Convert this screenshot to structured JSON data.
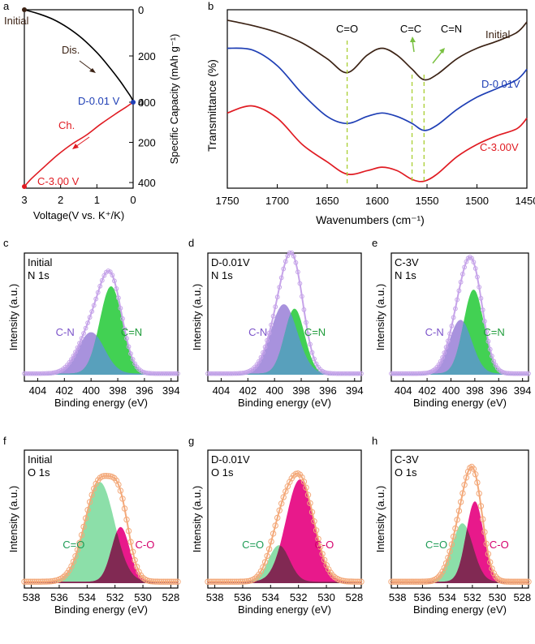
{
  "colors": {
    "brown": "#3b2214",
    "blue": "#1f3fb5",
    "red": "#e01b22",
    "green_guide": "#a9cf32",
    "arrow_green": "#7ac142",
    "purple_env": "#c6a4e9",
    "purple_fill": "#9f86d9",
    "teal_fill": "#5a9ec2",
    "green_fill": "#2ecc40",
    "orange_env": "#f3a97a",
    "lightgreen_fill": "#7fdca0",
    "pink_fill": "#e6007e",
    "maroon_fill": "#7b2a50"
  },
  "chart_data": [
    {
      "panel": "a",
      "type": "line",
      "xlabel": "Voltage(V vs. K⁺/K)",
      "ylabel": "Specific Capacity (mAh g⁻¹)",
      "x_ticks": [
        "3",
        "2",
        "1",
        "0"
      ],
      "xlim": [
        3,
        0
      ],
      "discharge_ticks": [
        "0",
        "200",
        "400"
      ],
      "charge_ticks": [
        "0",
        "200",
        "400"
      ],
      "annotations": {
        "initial": "Initial",
        "discharge": "Dis.",
        "charge": "Ch.",
        "d_point": "D-0.01 V",
        "c_point": "C-3.00 V"
      },
      "series": [
        {
          "name": "Dis.",
          "x": [
            3.0,
            2.6,
            2.2,
            1.8,
            1.4,
            1.0,
            0.7,
            0.4,
            0.2,
            0.05,
            0.0
          ],
          "y": [
            0,
            18,
            42,
            78,
            125,
            185,
            240,
            300,
            345,
            380,
            400
          ]
        },
        {
          "name": "Ch.",
          "x": [
            0.0,
            0.2,
            0.5,
            0.9,
            1.3,
            1.7,
            2.1,
            2.5,
            2.8,
            3.0
          ],
          "y": [
            0,
            25,
            60,
            110,
            165,
            210,
            265,
            330,
            380,
            420
          ]
        }
      ]
    },
    {
      "panel": "b",
      "type": "line",
      "xlabel": "Wavenumbers (cm⁻¹)",
      "ylabel": "Transmittance (%)",
      "x_ticks": [
        "1750",
        "1700",
        "1650",
        "1600",
        "1550",
        "1500",
        "1450"
      ],
      "xlim": [
        1750,
        1450
      ],
      "guides": [
        {
          "label": "C=O",
          "x": 1630
        },
        {
          "label": "C=C",
          "x": 1565
        },
        {
          "label": "C=N",
          "x": 1553
        }
      ],
      "series": [
        {
          "name": "Initial",
          "x": [
            1750,
            1725,
            1700,
            1675,
            1650,
            1630,
            1610,
            1595,
            1580,
            1565,
            1553,
            1540,
            1520,
            1500,
            1480,
            1460,
            1450
          ],
          "y": [
            0.86,
            0.83,
            0.79,
            0.73,
            0.64,
            0.56,
            0.66,
            0.7,
            0.66,
            0.58,
            0.52,
            0.55,
            0.64,
            0.7,
            0.74,
            0.79,
            0.85
          ]
        },
        {
          "name": "D-0.01V",
          "x": [
            1750,
            1725,
            1700,
            1675,
            1650,
            1630,
            1610,
            1595,
            1580,
            1565,
            1553,
            1540,
            1520,
            1500,
            1480,
            1460,
            1450
          ],
          "y": [
            0.7,
            0.69,
            0.6,
            0.44,
            0.31,
            0.27,
            0.31,
            0.33,
            0.31,
            0.27,
            0.23,
            0.26,
            0.35,
            0.42,
            0.47,
            0.52,
            0.58
          ]
        },
        {
          "name": "C-3.00V",
          "x": [
            1750,
            1725,
            1700,
            1675,
            1650,
            1630,
            1610,
            1595,
            1580,
            1565,
            1553,
            1540,
            1520,
            1500,
            1480,
            1460,
            1450
          ],
          "y": [
            0.33,
            0.37,
            0.3,
            0.15,
            0.05,
            -0.02,
            0.0,
            0.02,
            0.0,
            -0.05,
            -0.06,
            -0.02,
            0.08,
            0.15,
            0.2,
            0.24,
            0.3
          ]
        }
      ]
    },
    {
      "panel": "c",
      "type": "area",
      "title": "Initial",
      "subtitle": "N 1s",
      "xlabel": "Binding energy (eV)",
      "ylabel": "Intensity (a.u.)",
      "x_ticks": [
        "404",
        "402",
        "400",
        "398",
        "396",
        "394"
      ],
      "xlim": [
        405,
        393.5
      ],
      "peaks": [
        {
          "name": "C-N",
          "center": 400.0,
          "height": 0.37,
          "sigma": 1.0
        },
        {
          "name": "C=N",
          "center": 398.5,
          "height": 0.78,
          "sigma": 0.85
        }
      ]
    },
    {
      "panel": "d",
      "type": "area",
      "title": "D-0.01V",
      "subtitle": "N 1s",
      "xlabel": "Binding energy (eV)",
      "ylabel": "Intensity (a.u.)",
      "x_ticks": [
        "404",
        "402",
        "400",
        "398",
        "396",
        "394"
      ],
      "xlim": [
        405,
        393.5
      ],
      "peaks": [
        {
          "name": "C-N",
          "center": 399.3,
          "height": 0.62,
          "sigma": 1.0
        },
        {
          "name": "C=N",
          "center": 398.5,
          "height": 0.58,
          "sigma": 0.75
        }
      ]
    },
    {
      "panel": "e",
      "type": "area",
      "title": "C-3V",
      "subtitle": "N 1s",
      "xlabel": "Binding energy (eV)",
      "ylabel": "Intensity (a.u.)",
      "x_ticks": [
        "404",
        "402",
        "400",
        "398",
        "396",
        "394"
      ],
      "xlim": [
        405,
        393.5
      ],
      "peaks": [
        {
          "name": "C-N",
          "center": 399.2,
          "height": 0.48,
          "sigma": 0.95
        },
        {
          "name": "C=N",
          "center": 398.1,
          "height": 0.75,
          "sigma": 0.85
        }
      ]
    },
    {
      "panel": "f",
      "type": "area",
      "title": "Initial",
      "subtitle": "O 1s",
      "xlabel": "Binding energy (eV)",
      "ylabel": "Intensity (a.u.)",
      "x_ticks": [
        "538",
        "536",
        "534",
        "532",
        "530",
        "528"
      ],
      "xlim": [
        538.5,
        527.5
      ],
      "peaks": [
        {
          "name": "C=O",
          "center": 533.1,
          "height": 0.82,
          "sigma": 1.05
        },
        {
          "name": "C-O",
          "center": 531.6,
          "height": 0.45,
          "sigma": 0.65
        }
      ]
    },
    {
      "panel": "g",
      "type": "area",
      "title": "D-0.01V",
      "subtitle": "O 1s",
      "xlabel": "Binding energy (eV)",
      "ylabel": "Intensity (a.u.)",
      "x_ticks": [
        "538",
        "536",
        "534",
        "532",
        "530",
        "528"
      ],
      "xlim": [
        538.5,
        527.5
      ],
      "peaks": [
        {
          "name": "C=O",
          "center": 533.4,
          "height": 0.3,
          "sigma": 0.75
        },
        {
          "name": "C-O",
          "center": 531.9,
          "height": 0.84,
          "sigma": 1.0
        }
      ]
    },
    {
      "panel": "h",
      "type": "area",
      "title": "C-3V",
      "subtitle": "O 1s",
      "xlabel": "Binding energy (eV)",
      "ylabel": "Intensity (a.u.)",
      "x_ticks": [
        "538",
        "536",
        "534",
        "532",
        "530",
        "528"
      ],
      "xlim": [
        538.5,
        527.5
      ],
      "peaks": [
        {
          "name": "C=O",
          "center": 532.8,
          "height": 0.48,
          "sigma": 0.85
        },
        {
          "name": "C-O",
          "center": 531.8,
          "height": 0.66,
          "sigma": 0.7
        }
      ]
    }
  ]
}
